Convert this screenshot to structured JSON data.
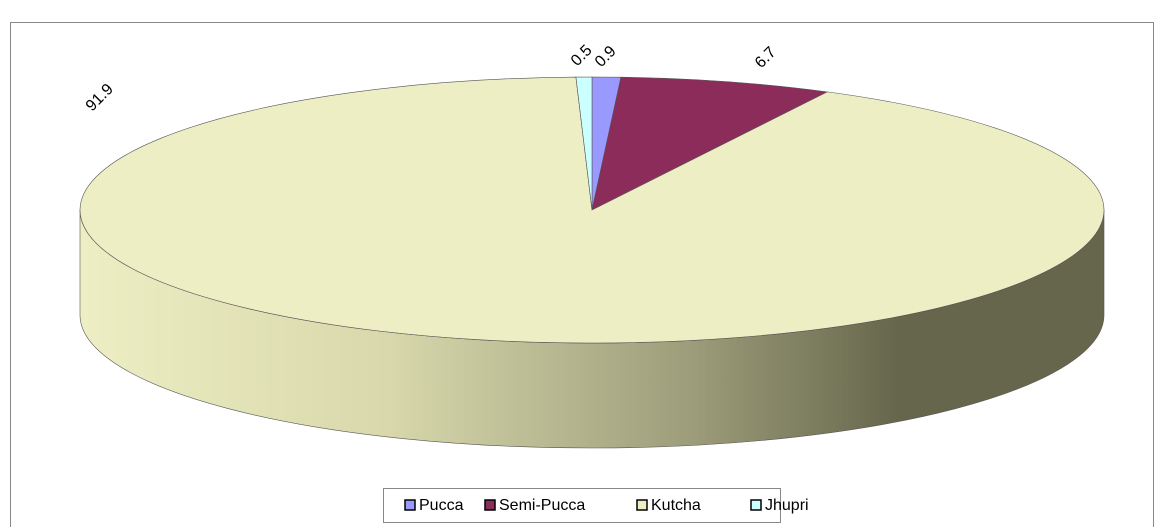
{
  "chart_data": {
    "type": "pie",
    "categories": [
      "Pucca",
      "Semi-Pucca",
      "Kutcha",
      "Jhupri"
    ],
    "values": [
      0.9,
      6.7,
      91.9,
      0.5
    ],
    "colors": [
      "#9999ff",
      "#8b2c5a",
      "#eeeec4",
      "#ccffff"
    ]
  }
}
